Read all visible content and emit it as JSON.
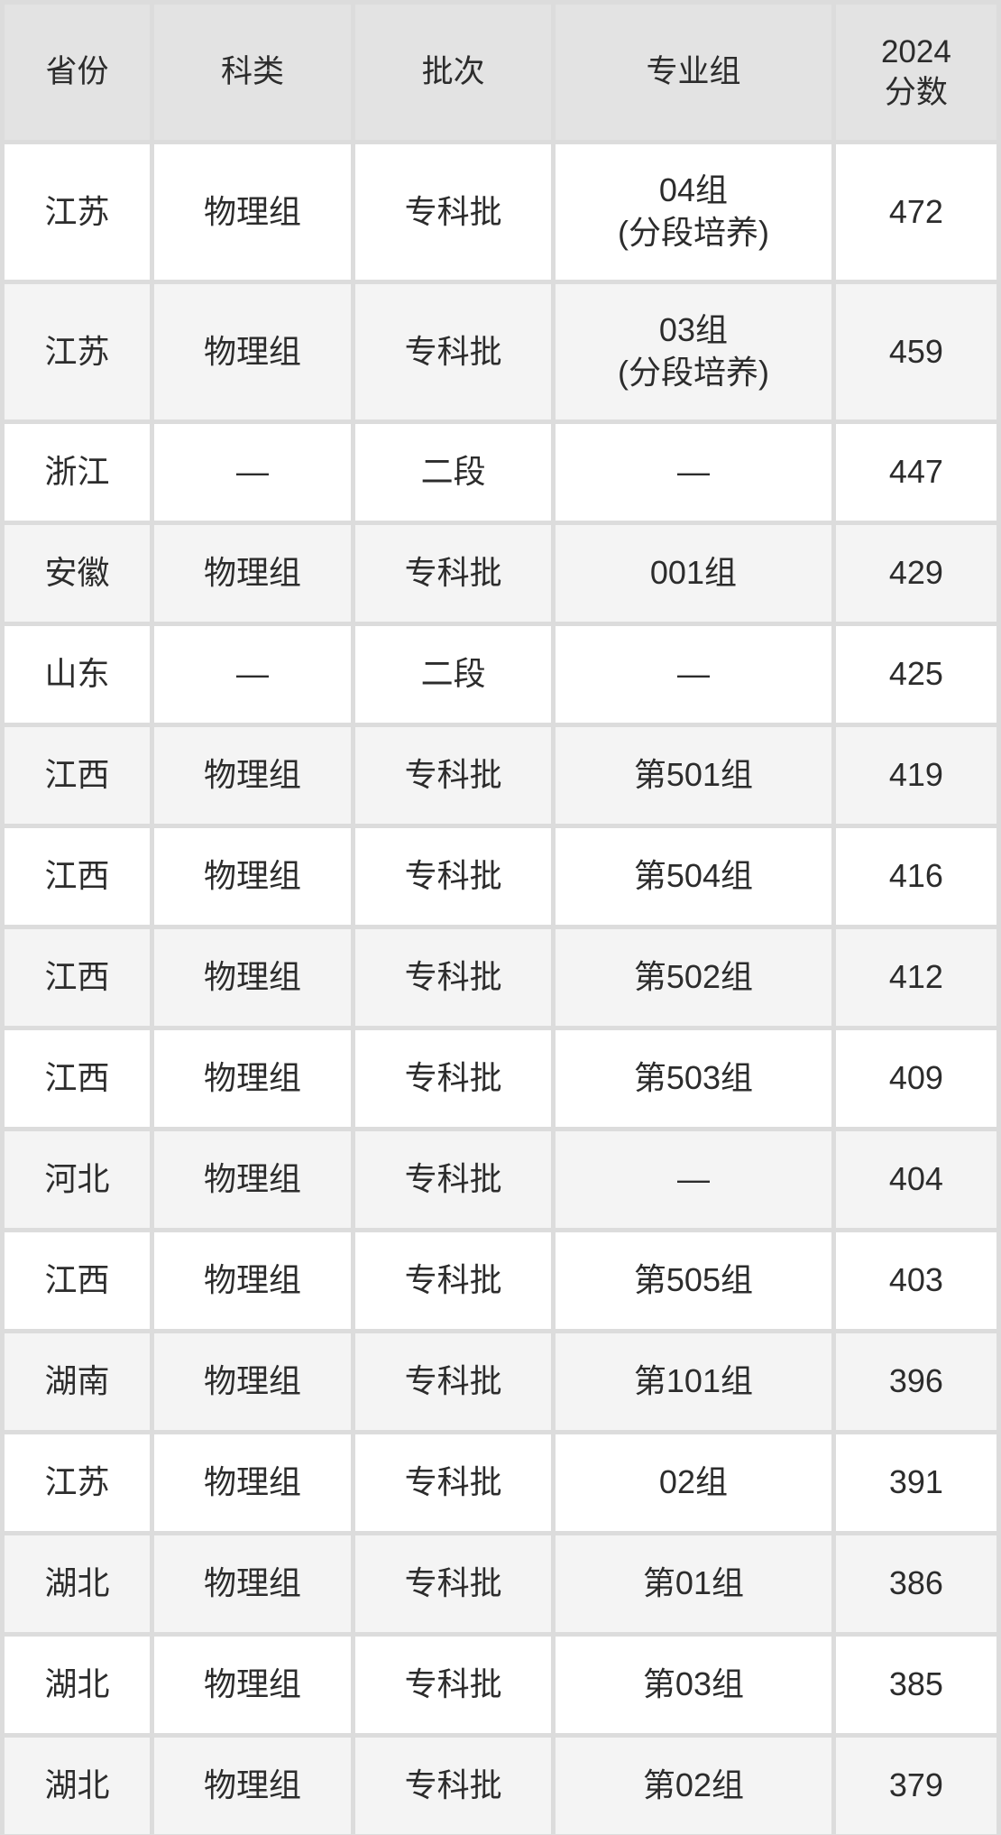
{
  "chart_data": {
    "type": "table",
    "columns": [
      "省份",
      "科类",
      "批次",
      "专业组",
      "2024分数"
    ],
    "score_header_lines": [
      "2024",
      "分数"
    ],
    "rows": [
      {
        "province": "江苏",
        "category": "物理组",
        "batch": "专科批",
        "group": "04组",
        "group_sub": "(分段培养)",
        "score": "472"
      },
      {
        "province": "江苏",
        "category": "物理组",
        "batch": "专科批",
        "group": "03组",
        "group_sub": "(分段培养)",
        "score": "459"
      },
      {
        "province": "浙江",
        "category": "—",
        "batch": "二段",
        "group": "—",
        "group_sub": "",
        "score": "447"
      },
      {
        "province": "安徽",
        "category": "物理组",
        "batch": "专科批",
        "group": "001组",
        "group_sub": "",
        "score": "429"
      },
      {
        "province": "山东",
        "category": "—",
        "batch": "二段",
        "group": "—",
        "group_sub": "",
        "score": "425"
      },
      {
        "province": "江西",
        "category": "物理组",
        "batch": "专科批",
        "group": "第501组",
        "group_sub": "",
        "score": "419"
      },
      {
        "province": "江西",
        "category": "物理组",
        "batch": "专科批",
        "group": "第504组",
        "group_sub": "",
        "score": "416"
      },
      {
        "province": "江西",
        "category": "物理组",
        "batch": "专科批",
        "group": "第502组",
        "group_sub": "",
        "score": "412"
      },
      {
        "province": "江西",
        "category": "物理组",
        "batch": "专科批",
        "group": "第503组",
        "group_sub": "",
        "score": "409"
      },
      {
        "province": "河北",
        "category": "物理组",
        "batch": "专科批",
        "group": "—",
        "group_sub": "",
        "score": "404"
      },
      {
        "province": "江西",
        "category": "物理组",
        "batch": "专科批",
        "group": "第505组",
        "group_sub": "",
        "score": "403"
      },
      {
        "province": "湖南",
        "category": "物理组",
        "batch": "专科批",
        "group": "第101组",
        "group_sub": "",
        "score": "396"
      },
      {
        "province": "江苏",
        "category": "物理组",
        "batch": "专科批",
        "group": "02组",
        "group_sub": "",
        "score": "391"
      },
      {
        "province": "湖北",
        "category": "物理组",
        "batch": "专科批",
        "group": "第01组",
        "group_sub": "",
        "score": "386"
      },
      {
        "province": "湖北",
        "category": "物理组",
        "batch": "专科批",
        "group": "第03组",
        "group_sub": "",
        "score": "385"
      },
      {
        "province": "湖北",
        "category": "物理组",
        "batch": "专科批",
        "group": "第02组",
        "group_sub": "",
        "score": "379"
      }
    ]
  },
  "colors": {
    "header_bg": "#e3e3e3",
    "row_bg": "#ffffff",
    "row_alt_bg": "#f4f4f4",
    "grid_gap": "#dcdcdc",
    "text": "#2c2c2c"
  }
}
